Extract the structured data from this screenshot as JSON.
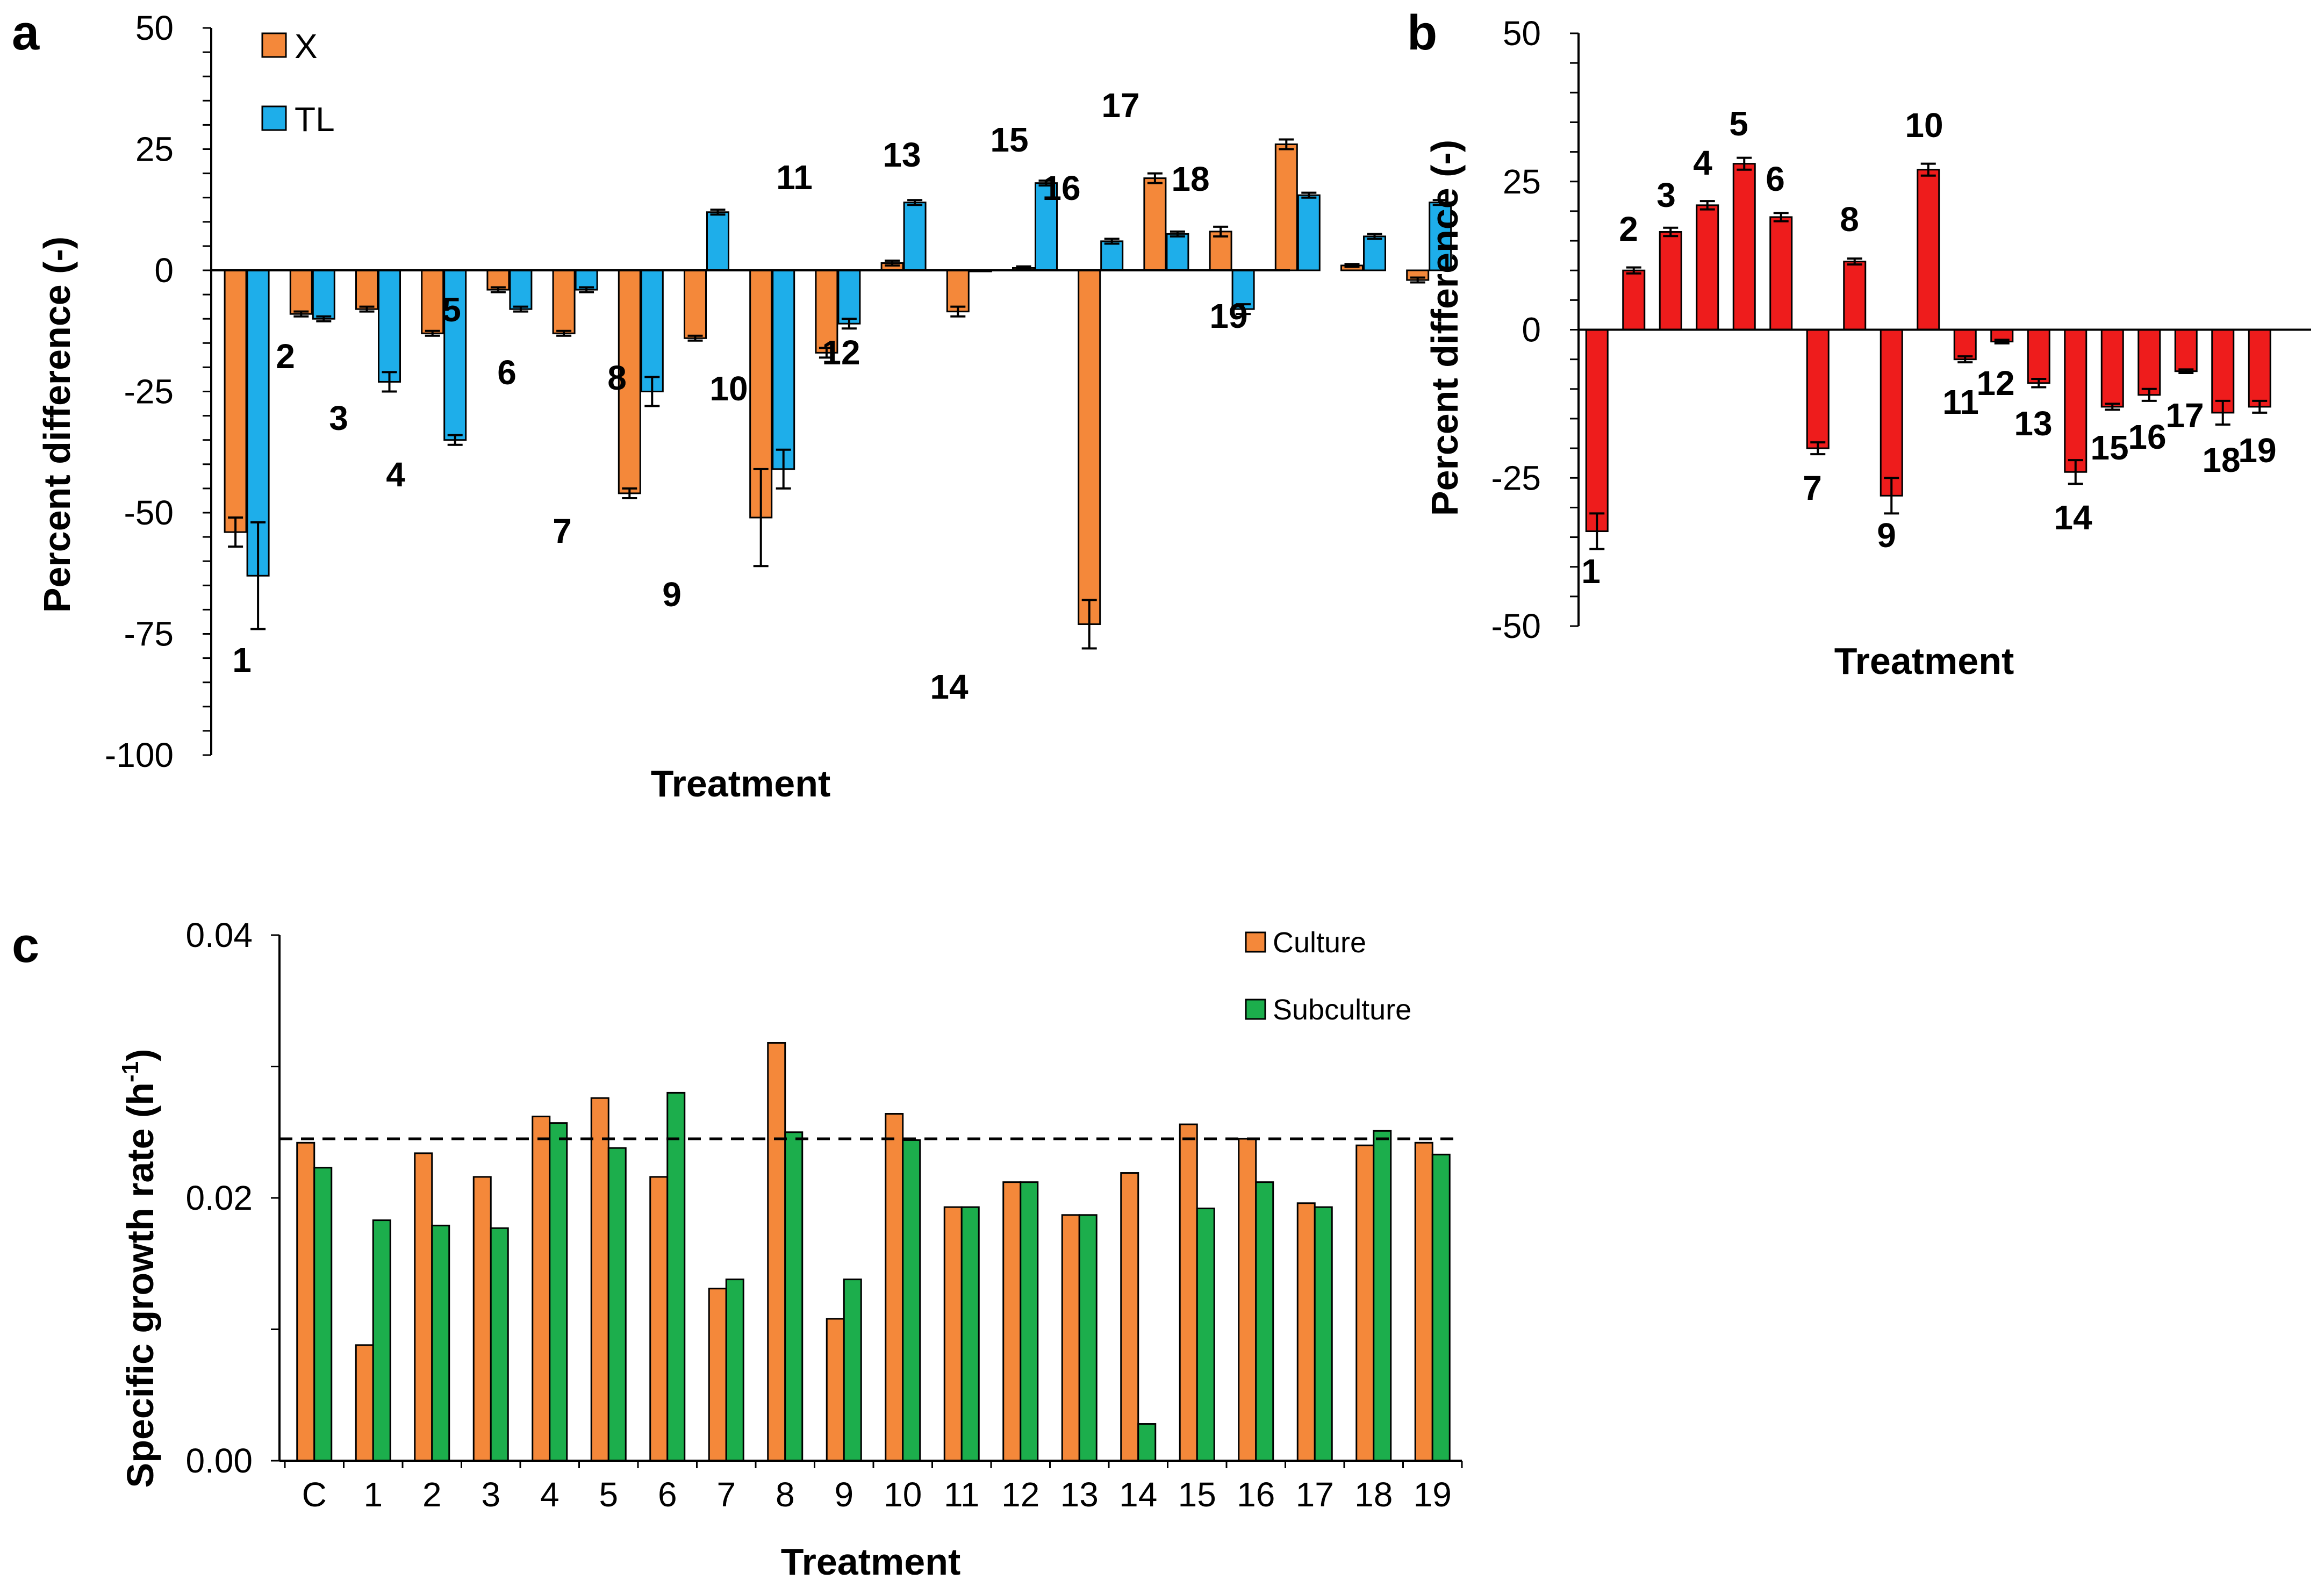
{
  "chart_data": [
    {
      "panel": "a",
      "type": "bar",
      "ylabel": "Percent difference (-)",
      "xlabel": "Treatment",
      "ylim": [
        -100,
        50
      ],
      "yticks": [
        50,
        25,
        0,
        -25,
        -50,
        -75,
        -100
      ],
      "categories": [
        "1",
        "2",
        "3",
        "4",
        "5",
        "6",
        "7",
        "8",
        "9",
        "10",
        "11",
        "12",
        "13",
        "14",
        "15",
        "16",
        "17",
        "18",
        "19"
      ],
      "series": [
        {
          "name": "X",
          "color": "#f4883a",
          "values": [
            -54,
            -9,
            -8,
            -13,
            -4,
            -13,
            -46,
            -14,
            -51,
            -17,
            1.5,
            -8.5,
            0.5,
            -73,
            19,
            8,
            26,
            1,
            -2
          ],
          "errors": [
            3,
            0.5,
            0.5,
            0.5,
            0.5,
            0.5,
            1,
            0.5,
            10,
            1,
            0.5,
            1,
            0.3,
            5,
            1,
            1,
            1,
            0.3,
            0.5
          ]
        },
        {
          "name": "TL",
          "color": "#1eaeea",
          "values": [
            -63,
            -10,
            -23,
            -35,
            -8,
            -4,
            -25,
            12,
            -41,
            -11,
            14,
            0,
            18,
            6,
            7.5,
            -8,
            15.5,
            7,
            14
          ],
          "errors": [
            11,
            0.5,
            2,
            1,
            0.5,
            0.5,
            3,
            0.5,
            4,
            1,
            0.5,
            0,
            0.5,
            0.5,
            0.5,
            1,
            0.5,
            0.5,
            0.5
          ]
        }
      ]
    },
    {
      "panel": "b",
      "type": "bar",
      "ylabel": "Percent difference (-)",
      "xlabel": "Treatment",
      "ylim": [
        -50,
        50
      ],
      "yticks": [
        50,
        25,
        0,
        -25,
        -50
      ],
      "categories": [
        "1",
        "2",
        "3",
        "4",
        "5",
        "6",
        "7",
        "8",
        "9",
        "10",
        "11",
        "12",
        "13",
        "14",
        "15",
        "16",
        "17",
        "18",
        "19"
      ],
      "series": [
        {
          "name": "Percent difference",
          "color": "#ee1c1c",
          "values": [
            -34,
            10,
            16.5,
            21,
            28,
            19,
            -20,
            11.5,
            -28,
            27,
            -5,
            -2,
            -9,
            -24,
            -13,
            -11,
            -7,
            -14,
            -13
          ],
          "errors": [
            3,
            0.5,
            0.7,
            0.7,
            1,
            0.7,
            1,
            0.5,
            3,
            1,
            0.5,
            0.3,
            0.7,
            2,
            0.5,
            1,
            0.3,
            2,
            1
          ]
        }
      ]
    },
    {
      "panel": "c",
      "type": "bar",
      "ylabel": "Specific growth rate (h-1)",
      "xlabel": "Treatment",
      "ylim": [
        0,
        0.04
      ],
      "yticks": [
        "0.04",
        "0.02",
        "0.00"
      ],
      "reference_line": 0.0245,
      "categories": [
        "C",
        "1",
        "2",
        "3",
        "4",
        "5",
        "6",
        "7",
        "8",
        "9",
        "10",
        "11",
        "12",
        "13",
        "14",
        "15",
        "16",
        "17",
        "18",
        "19"
      ],
      "series": [
        {
          "name": "Culture",
          "color": "#f4883a",
          "values": [
            0.0242,
            0.0088,
            0.0234,
            0.0216,
            0.0262,
            0.0276,
            0.0216,
            0.0131,
            0.0318,
            0.0108,
            0.0264,
            0.0193,
            0.0212,
            0.0187,
            0.0219,
            0.0256,
            0.0245,
            0.0196,
            0.024,
            0.0242
          ]
        },
        {
          "name": "Subculture",
          "color": "#1cae4c",
          "values": [
            0.0223,
            0.0183,
            0.0179,
            0.0177,
            0.0257,
            0.0238,
            0.028,
            0.0138,
            0.025,
            0.0138,
            0.0244,
            0.0193,
            0.0212,
            0.0187,
            0.0028,
            0.0192,
            0.0212,
            0.0193,
            0.0251,
            0.0233
          ]
        }
      ]
    }
  ],
  "panel_letters": {
    "a": "a",
    "b": "b",
    "c": "c"
  },
  "texts": {
    "a_ylabel": "Percent difference (-)",
    "a_xlabel": "Treatment",
    "b_ylabel": "Percent difference (-)",
    "b_xlabel": "Treatment",
    "c_ylabel_main": "Specific growth rate (h",
    "c_ylabel_sup": "-1",
    "c_ylabel_end": ")",
    "c_xlabel": "Treatment",
    "legend_a_x": "X",
    "legend_a_tl": "TL",
    "legend_c_culture": "Culture",
    "legend_c_subculture": "Subculture"
  }
}
